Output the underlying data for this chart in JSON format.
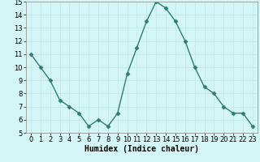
{
  "x": [
    0,
    1,
    2,
    3,
    4,
    5,
    6,
    7,
    8,
    9,
    10,
    11,
    12,
    13,
    14,
    15,
    16,
    17,
    18,
    19,
    20,
    21,
    22,
    23
  ],
  "y": [
    11,
    10,
    9,
    7.5,
    7,
    6.5,
    5.5,
    6,
    5.5,
    6.5,
    9.5,
    11.5,
    13.5,
    15,
    14.5,
    13.5,
    12,
    10,
    8.5,
    8,
    7,
    6.5,
    6.5,
    5.5
  ],
  "line_color": "#2e7d6e",
  "marker": "D",
  "marker_size": 2.5,
  "bg_color": "#d4f5f5",
  "grid_major_color": "#c0e8e8",
  "grid_minor_color": "#d0eeee",
  "xlabel": "Humidex (Indice chaleur)",
  "xlim": [
    -0.5,
    23.5
  ],
  "ylim": [
    5,
    15
  ],
  "yticks": [
    5,
    6,
    7,
    8,
    9,
    10,
    11,
    12,
    13,
    14,
    15
  ],
  "xticks": [
    0,
    1,
    2,
    3,
    4,
    5,
    6,
    7,
    8,
    9,
    10,
    11,
    12,
    13,
    14,
    15,
    16,
    17,
    18,
    19,
    20,
    21,
    22,
    23
  ],
  "tick_fontsize": 6,
  "xlabel_fontsize": 7
}
